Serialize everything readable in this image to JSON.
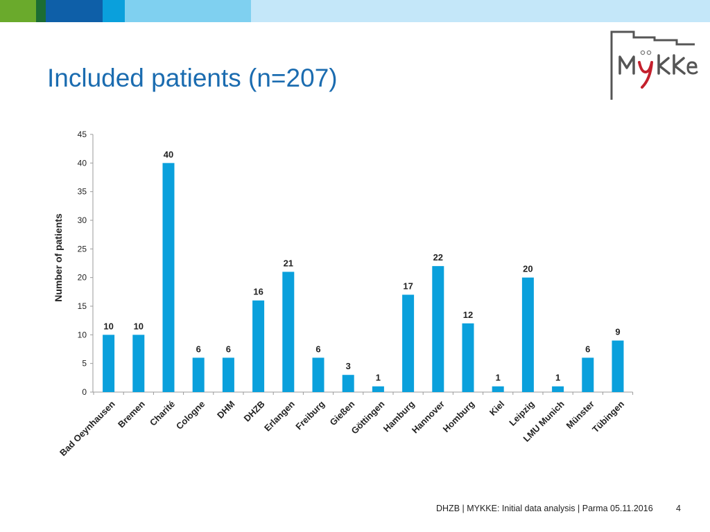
{
  "slide": {
    "title": "Included patients (n=207)",
    "footer": "DHZB | MYKKE: Initial data analysis | Parma 05.11.2016",
    "page_number": "4",
    "logo_text": "MYKKE"
  },
  "colors": {
    "bar": "#0aa0dc",
    "title": "#1b6cb0",
    "topbar": [
      "#6aaa2c",
      "#1c6d33",
      "#0e5fa8",
      "#0aa0dc",
      "#7fd0f0",
      "#c4e7f9"
    ]
  },
  "chart_data": {
    "type": "bar",
    "title": "",
    "xlabel": "",
    "ylabel": "Number of patients",
    "ylim": [
      0,
      45
    ],
    "yticks": [
      0,
      5,
      10,
      15,
      20,
      25,
      30,
      35,
      40,
      45
    ],
    "categories": [
      "Bad Oeynhausen",
      "Bremen",
      "Charité",
      "Cologne",
      "DHM",
      "DHZB",
      "Erlangen",
      "Freiburg",
      "Gießen",
      "Göttingen",
      "Hamburg",
      "Hannover",
      "Homburg",
      "Kiel",
      "Leipzig",
      "LMU Munich",
      "Münster",
      "Tübingen"
    ],
    "values": [
      10,
      10,
      40,
      6,
      6,
      16,
      21,
      6,
      3,
      1,
      17,
      22,
      12,
      1,
      20,
      1,
      6,
      9
    ],
    "grid": false,
    "legend": "none"
  }
}
